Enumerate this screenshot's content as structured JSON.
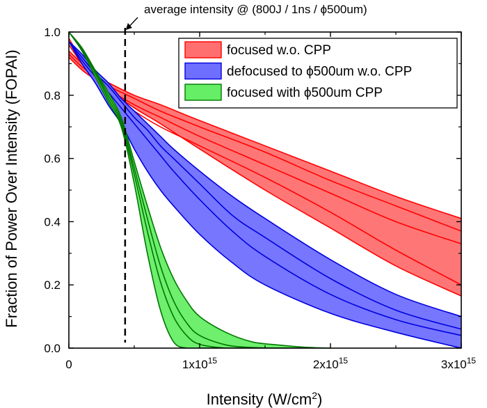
{
  "chart_data": {
    "type": "area",
    "title": "",
    "xlabel": "Intensity (W/cm²)",
    "ylabel": "Fraction of Power Over Intensity (FOPAI)",
    "xlim": [
      0,
      3000000000000000.0
    ],
    "ylim": [
      0,
      1.0
    ],
    "x_ticks": [
      {
        "value": 0,
        "base": "0",
        "exp": ""
      },
      {
        "value": 1000000000000000.0,
        "base": "1x10",
        "exp": "15"
      },
      {
        "value": 2000000000000000.0,
        "base": "2x10",
        "exp": "15"
      },
      {
        "value": 3000000000000000.0,
        "base": "3x10",
        "exp": "15"
      }
    ],
    "y_ticks": [
      "0.0",
      "0.2",
      "0.4",
      "0.6",
      "0.8",
      "1.0"
    ],
    "grid": false,
    "legend_position": "top-right",
    "annotation": {
      "text": "average intensity @ (800J / 1ns / ϕ500um)",
      "x": 430000000000000.0
    },
    "series": [
      {
        "name": "focused w.o. CPP",
        "color": "#ff0000",
        "fill": "#ff6f6f",
        "x": [
          0,
          100000000000000.0,
          200000000000000.0,
          300000000000000.0,
          500000000000000.0,
          700000000000000.0,
          1000000000000000.0,
          1500000000000000.0,
          2000000000000000.0,
          2500000000000000.0,
          3000000000000000.0
        ],
        "lower": [
          0.92,
          0.88,
          0.85,
          0.82,
          0.76,
          0.71,
          0.63,
          0.5,
          0.38,
          0.26,
          0.165
        ],
        "upper": [
          0.94,
          0.9,
          0.86,
          0.84,
          0.8,
          0.77,
          0.72,
          0.64,
          0.56,
          0.48,
          0.41
        ],
        "lines": [
          [
            0.93,
            0.89,
            0.86,
            0.83,
            0.79,
            0.75,
            0.7,
            0.62,
            0.53,
            0.45,
            0.37
          ],
          [
            0.96,
            0.9,
            0.86,
            0.82,
            0.77,
            0.73,
            0.67,
            0.58,
            0.49,
            0.4,
            0.33
          ],
          [
            0.98,
            0.91,
            0.85,
            0.81,
            0.75,
            0.7,
            0.64,
            0.54,
            0.43,
            0.31,
            0.2
          ]
        ]
      },
      {
        "name": "defocused to ϕ500um w.o. CPP",
        "color": "#0000dd",
        "fill": "#6f6fff",
        "x": [
          0,
          100000000000000.0,
          200000000000000.0,
          300000000000000.0,
          400000000000000.0,
          500000000000000.0,
          600000000000000.0,
          700000000000000.0,
          800000000000000.0,
          1000000000000000.0,
          1250000000000000.0,
          1500000000000000.0,
          2000000000000000.0,
          2500000000000000.0,
          3000000000000000.0
        ],
        "lower": [
          0.97,
          0.9,
          0.84,
          0.77,
          0.71,
          0.63,
          0.56,
          0.5,
          0.45,
          0.36,
          0.27,
          0.2,
          0.11,
          0.05,
          0.0
        ],
        "upper": [
          0.97,
          0.93,
          0.88,
          0.84,
          0.79,
          0.75,
          0.71,
          0.67,
          0.63,
          0.56,
          0.48,
          0.41,
          0.28,
          0.17,
          0.1
        ],
        "lines": [
          [
            0.97,
            0.91,
            0.86,
            0.81,
            0.76,
            0.71,
            0.66,
            0.61,
            0.56,
            0.47,
            0.37,
            0.29,
            0.17,
            0.09,
            0.04
          ],
          [
            0.97,
            0.92,
            0.87,
            0.83,
            0.78,
            0.73,
            0.69,
            0.64,
            0.6,
            0.52,
            0.42,
            0.35,
            0.22,
            0.12,
            0.06
          ]
        ]
      },
      {
        "name": "focused with ϕ500um CPP",
        "color": "#007700",
        "fill": "#66ee66",
        "x": [
          0,
          100000000000000.0,
          200000000000000.0,
          300000000000000.0,
          400000000000000.0,
          500000000000000.0,
          600000000000000.0,
          700000000000000.0,
          800000000000000.0,
          900000000000000.0,
          1000000000000000.0,
          1200000000000000.0,
          1400000000000000.0,
          1600000000000000.0,
          1800000000000000.0,
          2000000000000000.0
        ],
        "lower": [
          1.0,
          0.94,
          0.86,
          0.78,
          0.7,
          0.52,
          0.3,
          0.12,
          0.02,
          0.0,
          0.0,
          0.0,
          0.0,
          0.0,
          0.0,
          0.0
        ],
        "upper": [
          1.0,
          0.95,
          0.88,
          0.81,
          0.73,
          0.59,
          0.45,
          0.32,
          0.22,
          0.15,
          0.1,
          0.05,
          0.02,
          0.01,
          0.003,
          0.0
        ],
        "lines": [
          [
            1.0,
            0.945,
            0.87,
            0.79,
            0.71,
            0.55,
            0.37,
            0.21,
            0.1,
            0.04,
            0.012,
            0.0,
            0.0,
            0.0,
            0.0,
            0.0
          ],
          [
            1.0,
            0.948,
            0.875,
            0.8,
            0.72,
            0.57,
            0.41,
            0.26,
            0.15,
            0.08,
            0.04,
            0.01,
            0.002,
            0.0,
            0.0,
            0.0
          ]
        ]
      }
    ]
  }
}
